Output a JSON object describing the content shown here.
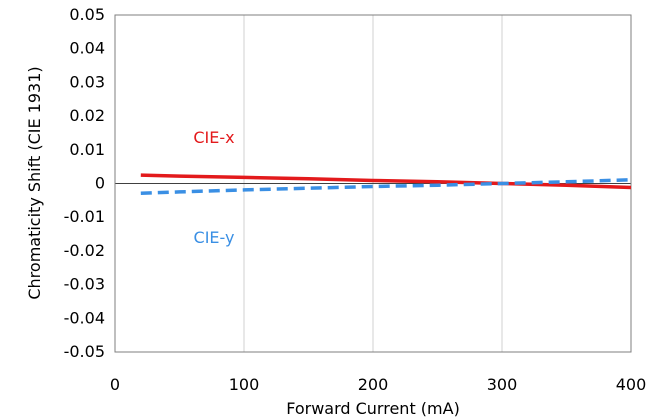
{
  "chart_data": {
    "type": "line",
    "xlabel": "Forward Current (mA)",
    "ylabel": "Chromaticity Shift (CIE 1931)",
    "xlim": [
      0,
      400
    ],
    "ylim": [
      -0.05,
      0.05
    ],
    "x_ticks": [
      "0",
      "100",
      "200",
      "300",
      "400"
    ],
    "y_ticks": [
      "0.05",
      "0.04",
      "0.03",
      "0.02",
      "0.01",
      "0",
      "-0.01",
      "-0.02",
      "-0.03",
      "-0.04",
      "-0.05"
    ],
    "grid": "vertical",
    "series": [
      {
        "name": "CIE-x",
        "color": "#e31a1c",
        "style": "solid",
        "x": [
          20,
          50,
          100,
          150,
          200,
          250,
          300,
          350,
          400
        ],
        "y": [
          0.0025,
          0.0022,
          0.0018,
          0.0014,
          0.0009,
          0.0005,
          0.0,
          -0.0005,
          -0.0012
        ]
      },
      {
        "name": "CIE-y",
        "color": "#3a8fe4",
        "style": "dashed",
        "x": [
          20,
          50,
          100,
          150,
          200,
          250,
          300,
          350,
          400
        ],
        "y": [
          -0.0029,
          -0.0025,
          -0.0019,
          -0.0014,
          -0.0009,
          -0.0005,
          0.0,
          0.0005,
          0.0011
        ]
      }
    ]
  }
}
